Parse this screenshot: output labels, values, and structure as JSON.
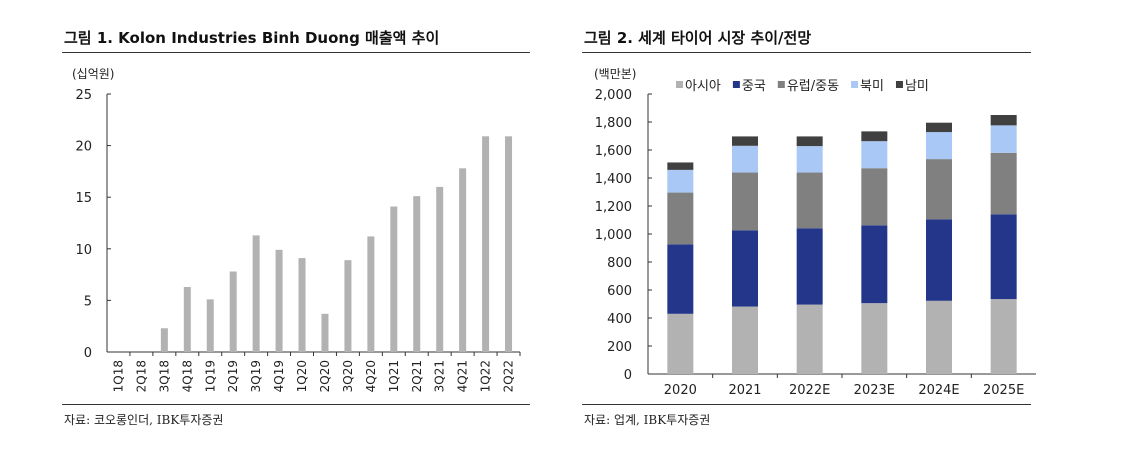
{
  "chart_data": [
    {
      "type": "bar",
      "title": "그림 1. Kolon Industries Binh Duong 매출액 추이",
      "unit": "(십억원)",
      "categories": [
        "1Q18",
        "2Q18",
        "3Q18",
        "4Q18",
        "1Q19",
        "2Q19",
        "3Q19",
        "4Q19",
        "1Q20",
        "2Q20",
        "3Q20",
        "4Q20",
        "1Q21",
        "2Q21",
        "3Q21",
        "4Q21",
        "1Q22",
        "2Q22"
      ],
      "values": [
        0,
        0,
        2.3,
        6.3,
        5.1,
        7.8,
        11.3,
        9.9,
        9.1,
        3.7,
        8.9,
        11.2,
        14.1,
        15.1,
        16.0,
        17.8,
        20.9,
        20.9
      ],
      "ylim": [
        0,
        25
      ],
      "yticks": [
        0,
        5,
        10,
        15,
        20,
        25
      ],
      "color": "#b2b2b2",
      "source": "자료: 코오롱인더, IBK투자증권"
    },
    {
      "type": "stacked-bar",
      "title": "그림 2. 세계 타이어 시장 추이/전망",
      "unit": "(백만본)",
      "categories": [
        "2020",
        "2021",
        "2022E",
        "2023E",
        "2024E",
        "2025E"
      ],
      "series": [
        {
          "name": "아시아",
          "color": "#b2b2b2",
          "values": [
            430,
            482,
            496,
            506,
            523,
            535
          ]
        },
        {
          "name": "중국",
          "color": "#23368a",
          "values": [
            496,
            544,
            545,
            556,
            582,
            606
          ]
        },
        {
          "name": "유럽/중동",
          "color": "#808080",
          "values": [
            370,
            413,
            398,
            408,
            430,
            439
          ]
        },
        {
          "name": "북미",
          "color": "#aac8f5",
          "values": [
            162,
            191,
            189,
            193,
            193,
            196
          ]
        },
        {
          "name": "남미",
          "color": "#404040",
          "values": [
            53,
            67,
            69,
            70,
            67,
            74
          ]
        }
      ],
      "ylim": [
        0,
        2000
      ],
      "yticks": [
        "0",
        "200",
        "400",
        "600",
        "800",
        "1,000",
        "1,200",
        "1,400",
        "1,600",
        "1,800",
        "2,000"
      ],
      "legend": "top",
      "source": "자료: 업계, IBK투자증권"
    }
  ]
}
